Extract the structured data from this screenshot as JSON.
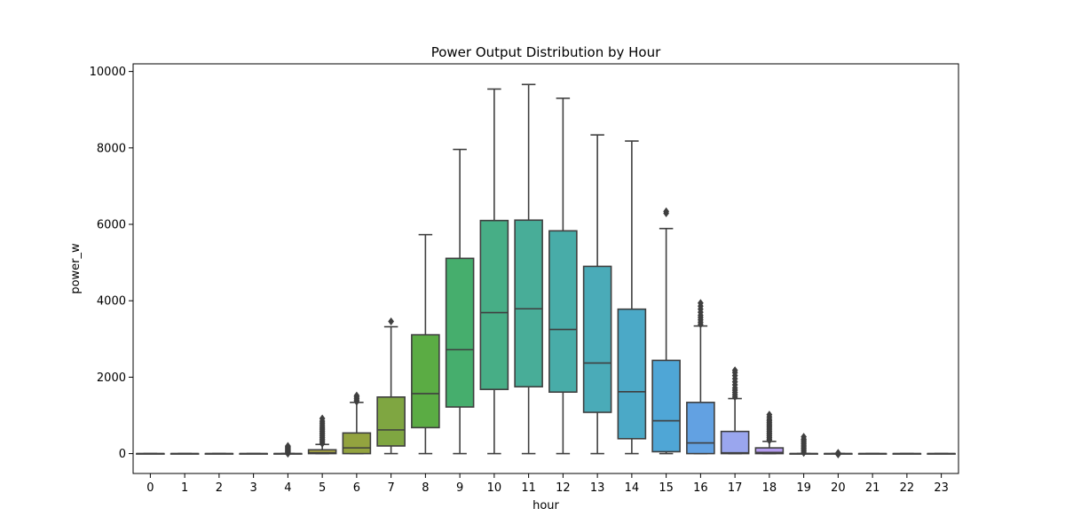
{
  "chart_data": {
    "type": "box",
    "title": "Power Output Distribution by Hour",
    "xlabel": "hour",
    "ylabel": "power_w",
    "ylim": [
      -520,
      10200
    ],
    "yticks": [
      0,
      2000,
      4000,
      6000,
      8000,
      10000
    ],
    "grid": false,
    "categories": [
      "0",
      "1",
      "2",
      "3",
      "4",
      "5",
      "6",
      "7",
      "8",
      "9",
      "10",
      "11",
      "12",
      "13",
      "14",
      "15",
      "16",
      "17",
      "18",
      "19",
      "20",
      "21",
      "22",
      "23"
    ],
    "box_color": "#3f3f3f",
    "series": [
      {
        "category": "0",
        "color": "#f08a8a",
        "min": 0,
        "q1": 0,
        "median": 0,
        "q3": 0,
        "max": 0,
        "outliers": []
      },
      {
        "category": "1",
        "color": "#ee8b6c",
        "min": 0,
        "q1": 0,
        "median": 0,
        "q3": 0,
        "max": 0,
        "outliers": []
      },
      {
        "category": "2",
        "color": "#d89a4e",
        "min": 0,
        "q1": 0,
        "median": 0,
        "q3": 0,
        "max": 0,
        "outliers": []
      },
      {
        "category": "3",
        "color": "#c9a147",
        "min": 0,
        "q1": 0,
        "median": 0,
        "q3": 0,
        "max": 0,
        "outliers": []
      },
      {
        "category": "4",
        "color": "#b4a444",
        "min": 0,
        "q1": 0,
        "median": 0,
        "q3": 0,
        "max": 0,
        "outliers": [
          0,
          20,
          40,
          60,
          80,
          100,
          120,
          140,
          160,
          180,
          200
        ]
      },
      {
        "category": "5",
        "color": "#a6a343",
        "min": 0,
        "q1": 0,
        "median": 20,
        "q3": 100,
        "max": 240,
        "outliers": [
          260,
          300,
          340,
          380,
          420,
          460,
          500,
          540,
          580,
          620,
          660,
          700,
          750,
          800,
          850,
          920
        ]
      },
      {
        "category": "6",
        "color": "#93a33f",
        "min": 0,
        "q1": 0,
        "median": 150,
        "q3": 540,
        "max": 1340,
        "outliers": [
          1360,
          1400,
          1440,
          1480,
          1520
        ]
      },
      {
        "category": "7",
        "color": "#7fa641",
        "min": 0,
        "q1": 200,
        "median": 620,
        "q3": 1480,
        "max": 3320,
        "outliers": [
          3460
        ]
      },
      {
        "category": "8",
        "color": "#5bac44",
        "min": 0,
        "q1": 680,
        "median": 1570,
        "q3": 3110,
        "max": 5730,
        "outliers": []
      },
      {
        "category": "9",
        "color": "#46ae6d",
        "min": 0,
        "q1": 1220,
        "median": 2720,
        "q3": 5110,
        "max": 7960,
        "outliers": []
      },
      {
        "category": "10",
        "color": "#47ae86",
        "min": 0,
        "q1": 1680,
        "median": 3690,
        "q3": 6100,
        "max": 9540,
        "outliers": []
      },
      {
        "category": "11",
        "color": "#48ad98",
        "min": 0,
        "q1": 1750,
        "median": 3790,
        "q3": 6110,
        "max": 9660,
        "outliers": []
      },
      {
        "category": "12",
        "color": "#48aca8",
        "min": 0,
        "q1": 1610,
        "median": 3250,
        "q3": 5830,
        "max": 9300,
        "outliers": []
      },
      {
        "category": "13",
        "color": "#4aabb8",
        "min": 0,
        "q1": 1080,
        "median": 2370,
        "q3": 4900,
        "max": 8340,
        "outliers": []
      },
      {
        "category": "14",
        "color": "#4ba9c7",
        "min": 0,
        "q1": 390,
        "median": 1620,
        "q3": 3780,
        "max": 8180,
        "outliers": []
      },
      {
        "category": "15",
        "color": "#4fa6d6",
        "min": 0,
        "q1": 50,
        "median": 860,
        "q3": 2440,
        "max": 5890,
        "outliers": [
          6290,
          6340
        ]
      },
      {
        "category": "16",
        "color": "#62a1e2",
        "min": 0,
        "q1": 0,
        "median": 280,
        "q3": 1340,
        "max": 3340,
        "outliers": [
          3380,
          3440,
          3500,
          3560,
          3620,
          3700,
          3780,
          3860,
          3940
        ]
      },
      {
        "category": "17",
        "color": "#9aa6ee",
        "min": 0,
        "q1": 0,
        "median": 20,
        "q3": 580,
        "max": 1440,
        "outliers": [
          1480,
          1540,
          1600,
          1660,
          1720,
          1800,
          1880,
          1960,
          2040,
          2120,
          2180
        ]
      },
      {
        "category": "18",
        "color": "#b49cee",
        "min": 0,
        "q1": 0,
        "median": 30,
        "q3": 150,
        "max": 320,
        "outliers": [
          340,
          380,
          420,
          460,
          500,
          540,
          580,
          620,
          660,
          700,
          740,
          780,
          820,
          860,
          900,
          960,
          1020
        ]
      },
      {
        "category": "19",
        "color": "#cb93ea",
        "min": 0,
        "q1": 0,
        "median": 0,
        "q3": 0,
        "max": 0,
        "outliers": [
          20,
          60,
          100,
          140,
          180,
          220,
          260,
          300,
          340,
          380,
          440
        ]
      },
      {
        "category": "20",
        "color": "#dc8de2",
        "min": 0,
        "q1": 0,
        "median": 0,
        "q3": 0,
        "max": 0,
        "outliers": [
          -20,
          0,
          20
        ]
      },
      {
        "category": "21",
        "color": "#e98ad0",
        "min": 0,
        "q1": 0,
        "median": 0,
        "q3": 0,
        "max": 0,
        "outliers": []
      },
      {
        "category": "22",
        "color": "#ef89bc",
        "min": 0,
        "q1": 0,
        "median": 0,
        "q3": 0,
        "max": 0,
        "outliers": []
      },
      {
        "category": "23",
        "color": "#f089a6",
        "min": 0,
        "q1": 0,
        "median": 0,
        "q3": 0,
        "max": 0,
        "outliers": []
      }
    ]
  }
}
